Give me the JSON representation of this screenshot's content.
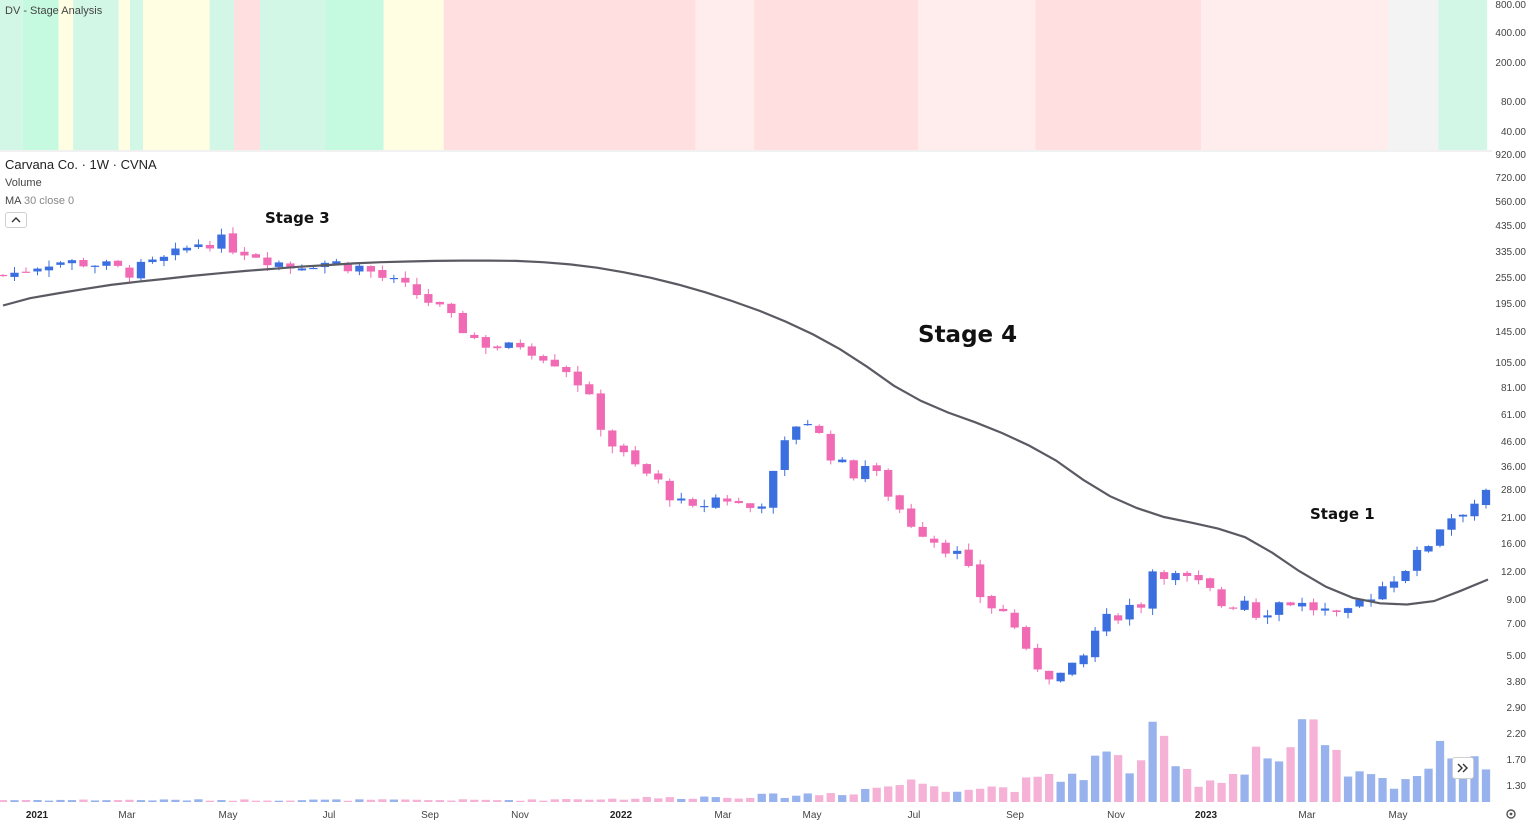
{
  "header": {
    "indicator_title": "DV - Stage Analysis",
    "symbol_title": "Carvana Co. · 1W · CVNA",
    "volume_label": "Volume",
    "ma_label_name": "MA",
    "ma_label_args": "30 close 0"
  },
  "colors": {
    "up_candle": "#3b6fe0",
    "down_candle": "#f06bb3",
    "up_volume": "#98b2ee",
    "down_volume": "#f6b2d6",
    "ma_line": "#5a5a62",
    "stage1_band": "#f3f3f3",
    "stage2_band": "#d2f7e6",
    "stage2_band_strong": "#c6fae0",
    "stage3_band": "#fffee2",
    "stage4_band": "#ffdfdf",
    "stage4_band_light": "#ffeded"
  },
  "icons": {
    "collapse": "chevron-up-icon",
    "scroll_right": "double-chevron-right-icon",
    "settings": "gear-icon"
  },
  "chart_data": [
    {
      "type": "heatmap",
      "title": "DV - Stage Analysis",
      "y_ticks": [
        "800.00",
        "400.00",
        "200.00",
        "80.00",
        "40.00"
      ],
      "bands": [
        {
          "from": "2021-01",
          "to": "2021-01-15",
          "stage": "2"
        },
        {
          "from": "2021-01-15",
          "to": "2021-02-06",
          "stage": "2-strong"
        },
        {
          "from": "2021-02-06",
          "to": "2021-02-15",
          "stage": "3"
        },
        {
          "from": "2021-02-15",
          "to": "2021-03-15",
          "stage": "2"
        },
        {
          "from": "2021-03-15",
          "to": "2021-03-22",
          "stage": "3"
        },
        {
          "from": "2021-03-22",
          "to": "2021-03-30",
          "stage": "2"
        },
        {
          "from": "2021-03-30",
          "to": "2021-05-10",
          "stage": "3"
        },
        {
          "from": "2021-05-10",
          "to": "2021-05-25",
          "stage": "2"
        },
        {
          "from": "2021-05-25",
          "to": "2021-06-10",
          "stage": "4"
        },
        {
          "from": "2021-06-10",
          "to": "2021-07-20",
          "stage": "2"
        },
        {
          "from": "2021-07-20",
          "to": "2021-08-25",
          "stage": "2-strong"
        },
        {
          "from": "2021-08-25",
          "to": "2021-10-01",
          "stage": "3"
        },
        {
          "from": "2021-10-01",
          "to": "2022-03-05",
          "stage": "4"
        },
        {
          "from": "2022-03-05",
          "to": "2022-04-10",
          "stage": "4-light"
        },
        {
          "from": "2022-04-10",
          "to": "2022-07-20",
          "stage": "4"
        },
        {
          "from": "2022-07-20",
          "to": "2022-09-30",
          "stage": "4-light"
        },
        {
          "from": "2022-09-30",
          "to": "2023-01-10",
          "stage": "4"
        },
        {
          "from": "2023-01-10",
          "to": "2023-05-05",
          "stage": "4-light"
        },
        {
          "from": "2023-05-05",
          "to": "2023-06-05",
          "stage": "1"
        },
        {
          "from": "2023-06-05",
          "to": "2023-07-05",
          "stage": "2"
        }
      ]
    },
    {
      "type": "candlestick",
      "title": "Carvana Co. · 1W · CVNA",
      "y_scale": "log",
      "y_ticks": [
        "920.00",
        "720.00",
        "560.00",
        "435.00",
        "335.00",
        "255.00",
        "195.00",
        "145.00",
        "105.00",
        "81.00",
        "61.00",
        "46.00",
        "36.00",
        "28.00",
        "21.00",
        "16.00",
        "12.00",
        "9.00",
        "7.00",
        "5.00",
        "3.80",
        "2.90",
        "2.20",
        "1.70",
        "1.30"
      ],
      "x_ticks": [
        {
          "label": "2021",
          "major": true
        },
        {
          "label": "Mar",
          "major": false
        },
        {
          "label": "May",
          "major": false
        },
        {
          "label": "Jul",
          "major": false
        },
        {
          "label": "Sep",
          "major": false
        },
        {
          "label": "Nov",
          "major": false
        },
        {
          "label": "2022",
          "major": true
        },
        {
          "label": "Mar",
          "major": false
        },
        {
          "label": "May",
          "major": false
        },
        {
          "label": "Jul",
          "major": false
        },
        {
          "label": "Sep",
          "major": false
        },
        {
          "label": "Nov",
          "major": false
        },
        {
          "label": "2023",
          "major": true
        },
        {
          "label": "Mar",
          "major": false
        },
        {
          "label": "May",
          "major": false
        }
      ],
      "annotations": [
        {
          "text": "Stage 3",
          "size": "small"
        },
        {
          "text": "Stage 4",
          "size": "large"
        },
        {
          "text": "Stage 1",
          "size": "small"
        }
      ],
      "anchor_closes": [
        260,
        268,
        285,
        300,
        300,
        295,
        300,
        285,
        275,
        270,
        285,
        300,
        320,
        350,
        375,
        370,
        350,
        335,
        320,
        300,
        285,
        298,
        300,
        295,
        290,
        280,
        260,
        240,
        225,
        210,
        190,
        165,
        148,
        130,
        125,
        120,
        128,
        118,
        110,
        100,
        85,
        65,
        47,
        40,
        35,
        32,
        28,
        24,
        22,
        25,
        26,
        24,
        23,
        26,
        40,
        55,
        57,
        45,
        37,
        33,
        37,
        30,
        24,
        20,
        18,
        16,
        15,
        12,
        9,
        8,
        7.6,
        5.0,
        4.4,
        4.0,
        4.1,
        4.8,
        6.8,
        7.4,
        8.3,
        8.5,
        13.0,
        11.5,
        11.0,
        10.4,
        9.5,
        8.0,
        9.5,
        7.8,
        8.2,
        9.0,
        8.5,
        8.2,
        7.8,
        7.0,
        8.5,
        9.5,
        10.5,
        12.0,
        13.5,
        16.0,
        20.0,
        22.0,
        24.0,
        26.0
      ],
      "ma_30_closes": [
        190,
        205,
        215,
        225,
        235,
        243,
        250,
        258,
        265,
        272,
        278,
        284,
        289,
        294,
        298,
        300,
        302,
        303,
        303,
        302,
        298,
        291,
        281,
        268,
        253,
        236,
        218,
        199,
        180,
        160,
        140,
        120,
        100,
        82,
        70,
        62,
        56,
        50,
        44,
        38,
        31,
        26,
        23,
        21,
        19.8,
        18.6,
        17.0,
        14.5,
        12.0,
        10.2,
        9.1,
        8.6,
        8.5,
        8.8,
        9.8,
        11.0
      ],
      "volume_profile": [
        2,
        2,
        2,
        2,
        2,
        2,
        2,
        2,
        2,
        2,
        2,
        2,
        2,
        2,
        2,
        2,
        2,
        2,
        2,
        2,
        2,
        2,
        3,
        3,
        3,
        4,
        4,
        5,
        5,
        6,
        6,
        7,
        8,
        10,
        14,
        18,
        20,
        16,
        14,
        15,
        18,
        22,
        28,
        45,
        35,
        60,
        30,
        22,
        25,
        55,
        38,
        70,
        40,
        25,
        20,
        25,
        40,
        65,
        35
      ]
    }
  ]
}
